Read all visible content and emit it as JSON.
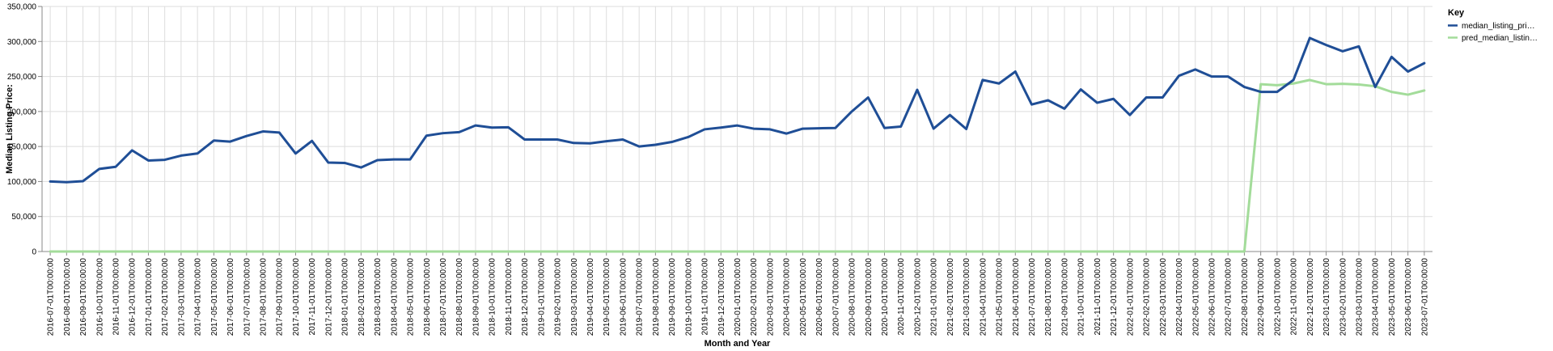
{
  "chart_data": {
    "type": "line",
    "xlabel": "Month and Year",
    "ylabel": "Median Listing Price:",
    "ylim": [
      0,
      350000
    ],
    "y_ticks": [
      "0",
      "50,000",
      "100,000",
      "150,000",
      "200,000",
      "250,000",
      "300,000",
      "350,000"
    ],
    "grid": true,
    "legend_position": "top-right",
    "legend_title": "Key",
    "x": [
      "2016-07-01T00:00:00",
      "2016-08-01T00:00:00",
      "2016-09-01T00:00:00",
      "2016-10-01T00:00:00",
      "2016-11-01T00:00:00",
      "2016-12-01T00:00:00",
      "2017-01-01T00:00:00",
      "2017-02-01T00:00:00",
      "2017-03-01T00:00:00",
      "2017-04-01T00:00:00",
      "2017-05-01T00:00:00",
      "2017-06-01T00:00:00",
      "2017-07-01T00:00:00",
      "2017-08-01T00:00:00",
      "2017-09-01T00:00:00",
      "2017-10-01T00:00:00",
      "2017-11-01T00:00:00",
      "2017-12-01T00:00:00",
      "2018-01-01T00:00:00",
      "2018-02-01T00:00:00",
      "2018-03-01T00:00:00",
      "2018-04-01T00:00:00",
      "2018-05-01T00:00:00",
      "2018-06-01T00:00:00",
      "2018-07-01T00:00:00",
      "2018-08-01T00:00:00",
      "2018-09-01T00:00:00",
      "2018-10-01T00:00:00",
      "2018-11-01T00:00:00",
      "2018-12-01T00:00:00",
      "2019-01-01T00:00:00",
      "2019-02-01T00:00:00",
      "2019-03-01T00:00:00",
      "2019-04-01T00:00:00",
      "2019-05-01T00:00:00",
      "2019-06-01T00:00:00",
      "2019-07-01T00:00:00",
      "2019-08-01T00:00:00",
      "2019-09-01T00:00:00",
      "2019-10-01T00:00:00",
      "2019-11-01T00:00:00",
      "2019-12-01T00:00:00",
      "2020-01-01T00:00:00",
      "2020-02-01T00:00:00",
      "2020-03-01T00:00:00",
      "2020-04-01T00:00:00",
      "2020-05-01T00:00:00",
      "2020-06-01T00:00:00",
      "2020-07-01T00:00:00",
      "2020-08-01T00:00:00",
      "2020-09-01T00:00:00",
      "2020-10-01T00:00:00",
      "2020-11-01T00:00:00",
      "2020-12-01T00:00:00",
      "2021-01-01T00:00:00",
      "2021-02-01T00:00:00",
      "2021-03-01T00:00:00",
      "2021-04-01T00:00:00",
      "2021-05-01T00:00:00",
      "2021-06-01T00:00:00",
      "2021-07-01T00:00:00",
      "2021-08-01T00:00:00",
      "2021-09-01T00:00:00",
      "2021-10-01T00:00:00",
      "2021-11-01T00:00:00",
      "2021-12-01T00:00:00",
      "2022-01-01T00:00:00",
      "2022-02-01T00:00:00",
      "2022-03-01T00:00:00",
      "2022-04-01T00:00:00",
      "2022-05-01T00:00:00",
      "2022-06-01T00:00:00",
      "2022-07-01T00:00:00",
      "2022-08-01T00:00:00",
      "2022-09-01T00:00:00",
      "2022-10-01T00:00:00",
      "2022-11-01T00:00:00",
      "2022-12-01T00:00:00",
      "2023-01-01T00:00:00",
      "2023-02-01T00:00:00",
      "2023-03-01T00:00:00",
      "2023-04-01T00:00:00",
      "2023-05-01T00:00:00",
      "2023-06-01T00:00:00",
      "2023-07-01T00:00:00"
    ],
    "series": [
      {
        "name": "median_listing_pri…",
        "color": "#1f4e96",
        "values": [
          100000,
          99000,
          100500,
          118000,
          121000,
          144500,
          130000,
          131000,
          137000,
          140000,
          158500,
          157000,
          165000,
          171500,
          170000,
          140000,
          158000,
          127000,
          126500,
          120000,
          130500,
          131500,
          131500,
          165500,
          169000,
          170500,
          180000,
          177000,
          177500,
          160000,
          160000,
          160000,
          155000,
          154500,
          157500,
          160000,
          150000,
          152500,
          156500,
          163500,
          174500,
          177000,
          180000,
          175500,
          174500,
          168500,
          175500,
          176000,
          176500,
          200000,
          220000,
          176500,
          178500,
          231000,
          175500,
          195000,
          175000,
          245000,
          240000,
          257000,
          210000,
          216000,
          204000,
          231500,
          212500,
          218000,
          195000,
          220000,
          220000,
          251000,
          260000,
          250000,
          250000,
          235000,
          228000,
          228000,
          245000,
          305000,
          295000,
          286000,
          293000,
          235000,
          278000,
          257000,
          269000
        ]
      },
      {
        "name": "pred_median_listin…",
        "color": "#a3dc9a",
        "values": [
          0,
          0,
          0,
          0,
          0,
          0,
          0,
          0,
          0,
          0,
          0,
          0,
          0,
          0,
          0,
          0,
          0,
          0,
          0,
          0,
          0,
          0,
          0,
          0,
          0,
          0,
          0,
          0,
          0,
          0,
          0,
          0,
          0,
          0,
          0,
          0,
          0,
          0,
          0,
          0,
          0,
          0,
          0,
          0,
          0,
          0,
          0,
          0,
          0,
          0,
          0,
          0,
          0,
          0,
          0,
          0,
          0,
          0,
          0,
          0,
          0,
          0,
          0,
          0,
          0,
          0,
          0,
          0,
          0,
          0,
          0,
          0,
          0,
          0,
          239000,
          237500,
          240000,
          245000,
          239000,
          239500,
          238500,
          236000,
          228000,
          224000,
          230000
        ]
      }
    ]
  }
}
